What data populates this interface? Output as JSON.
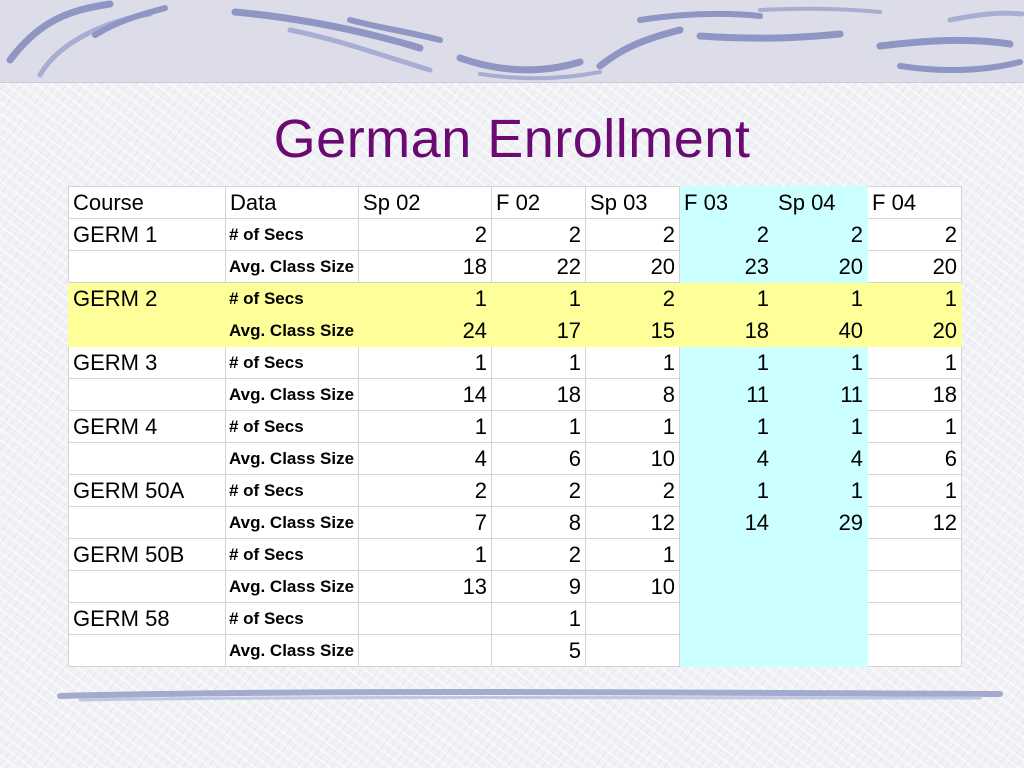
{
  "title": "German Enrollment",
  "table": {
    "headers": [
      "Course",
      "Data",
      "Sp 02",
      "F 02",
      "Sp 03",
      "F 03",
      "Sp 04",
      "F 04"
    ],
    "rows": [
      {
        "course": "GERM 1",
        "data": "# of Secs",
        "values": [
          "2",
          "2",
          "2",
          "2",
          "2",
          "2"
        ],
        "highlight": false
      },
      {
        "course": "",
        "data": "Avg. Class Size",
        "values": [
          "18",
          "22",
          "20",
          "23",
          "20",
          "20"
        ],
        "highlight": false
      },
      {
        "course": "GERM 2",
        "data": "# of Secs",
        "values": [
          "1",
          "1",
          "2",
          "1",
          "1",
          "1"
        ],
        "highlight": true
      },
      {
        "course": "",
        "data": "Avg. Class Size",
        "values": [
          "24",
          "17",
          "15",
          "18",
          "40",
          "20"
        ],
        "highlight": true
      },
      {
        "course": "GERM 3",
        "data": "# of Secs",
        "values": [
          "1",
          "1",
          "1",
          "1",
          "1",
          "1"
        ],
        "highlight": false
      },
      {
        "course": "",
        "data": "Avg. Class Size",
        "values": [
          "14",
          "18",
          "8",
          "11",
          "11",
          "18"
        ],
        "highlight": false
      },
      {
        "course": "GERM 4",
        "data": "# of Secs",
        "values": [
          "1",
          "1",
          "1",
          "1",
          "1",
          "1"
        ],
        "highlight": false
      },
      {
        "course": "",
        "data": "Avg. Class Size",
        "values": [
          "4",
          "6",
          "10",
          "4",
          "4",
          "6"
        ],
        "highlight": false
      },
      {
        "course": "GERM 50A",
        "data": "# of Secs",
        "values": [
          "2",
          "2",
          "2",
          "1",
          "1",
          "1"
        ],
        "highlight": false
      },
      {
        "course": "",
        "data": "Avg. Class Size",
        "values": [
          "7",
          "8",
          "12",
          "14",
          "29",
          "12"
        ],
        "highlight": false
      },
      {
        "course": "GERM 50B",
        "data": "# of Secs",
        "values": [
          "1",
          "2",
          "1",
          "",
          "",
          ""
        ],
        "highlight": false
      },
      {
        "course": "",
        "data": "Avg. Class Size",
        "values": [
          "13",
          "9",
          "10",
          "",
          "",
          ""
        ],
        "highlight": false
      },
      {
        "course": "GERM 58",
        "data": "# of Secs",
        "values": [
          "",
          "1",
          "",
          "",
          "",
          ""
        ],
        "highlight": false
      },
      {
        "course": "",
        "data": "Avg. Class Size",
        "values": [
          "",
          "5",
          "",
          "",
          "",
          ""
        ],
        "highlight": false
      }
    ]
  },
  "colors": {
    "title": "#6a0a72",
    "row_highlight": "#ffff99",
    "column_highlight": "#ccffff"
  }
}
